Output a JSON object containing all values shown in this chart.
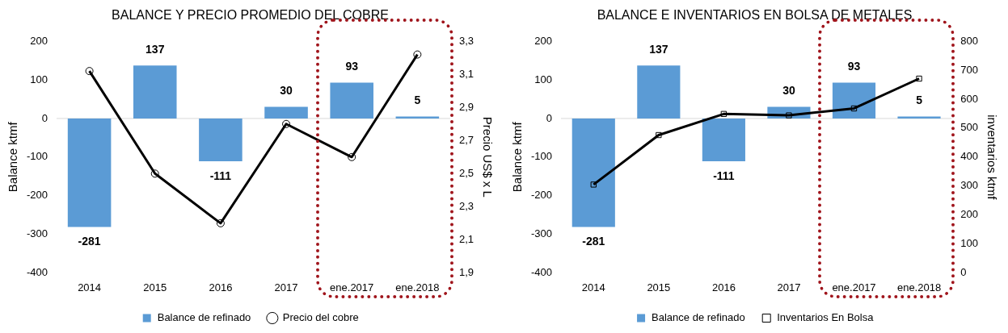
{
  "chart_data": [
    {
      "type": "bar",
      "title": "BALANCE Y PRECIO PROMEDIO DEL COBRE",
      "ylabel": "Balance ktmf",
      "y2label": "Precio US$ x L",
      "categories": [
        "2014",
        "2015",
        "2016",
        "2017",
        "ene.2017",
        "ene.2018"
      ],
      "series": [
        {
          "name": "Balance de refinado",
          "color": "#5b9bd5",
          "values": [
            -281,
            137,
            -111,
            30,
            93,
            5
          ],
          "value_labels": [
            "-281",
            "137",
            "-111",
            "30",
            "93",
            "5"
          ]
        },
        {
          "name": "Precio del cobre",
          "type": "line",
          "axis": "y2",
          "color": "#000000",
          "marker": "circle",
          "values": [
            3.12,
            2.5,
            2.2,
            2.8,
            2.6,
            3.22
          ]
        }
      ],
      "ylim": [
        -400,
        200
      ],
      "yticks": [
        -400,
        -300,
        -200,
        -100,
        0,
        100,
        200
      ],
      "y2lim": [
        1.9,
        3.3
      ],
      "y2ticks": [
        {
          "value": 1.9,
          "label": "1,9"
        },
        {
          "value": 2.1,
          "label": "2,1"
        },
        {
          "value": 2.3,
          "label": "2,3"
        },
        {
          "value": 2.5,
          "label": "2,5"
        },
        {
          "value": 2.7,
          "label": "2,7"
        },
        {
          "value": 2.9,
          "label": "2,9"
        },
        {
          "value": 3.1,
          "label": "3,1"
        },
        {
          "value": 3.3,
          "label": "3,3"
        }
      ],
      "legend": "bottom"
    },
    {
      "type": "bar",
      "title": "BALANCE E INVENTARIOS EN BOLSA DE METALES",
      "ylabel": "Balance ktmf",
      "y2label": "inventarios ktmf",
      "categories": [
        "2014",
        "2015",
        "2016",
        "2017",
        "ene.2017",
        "ene.2018"
      ],
      "series": [
        {
          "name": "Balance de refinado",
          "color": "#5b9bd5",
          "values": [
            -281,
            137,
            -111,
            30,
            93,
            5
          ],
          "value_labels": [
            "-281",
            "137",
            "-111",
            "30",
            "93",
            "5"
          ]
        },
        {
          "name": "Inventarios En Bolsa",
          "type": "line",
          "axis": "y2",
          "color": "#000000",
          "marker": "square",
          "values": [
            305,
            476,
            549,
            544,
            568,
            671
          ]
        }
      ],
      "ylim": [
        -400,
        200
      ],
      "yticks": [
        -400,
        -300,
        -200,
        -100,
        0,
        100,
        200
      ],
      "y2lim": [
        0,
        800
      ],
      "y2ticks": [
        0,
        100,
        200,
        300,
        400,
        500,
        600,
        700,
        800
      ],
      "legend": "bottom"
    }
  ]
}
